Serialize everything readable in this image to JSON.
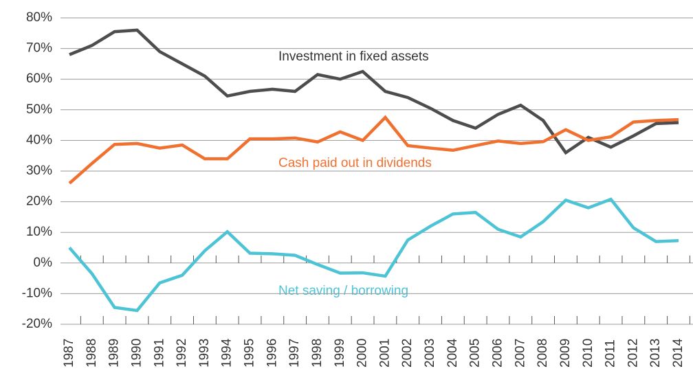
{
  "chart_data": {
    "type": "line",
    "categories": [
      "1987",
      "1988",
      "1989",
      "1990",
      "1991",
      "1992",
      "1993",
      "1994",
      "1995",
      "1996",
      "1997",
      "1998",
      "1999",
      "2000",
      "2001",
      "2002",
      "2003",
      "2004",
      "2005",
      "2006",
      "2007",
      "2008",
      "2009",
      "2010",
      "2011",
      "2012",
      "2013",
      "2014"
    ],
    "series": [
      {
        "name": "Investment in fixed assets",
        "color": "#4d4d4d",
        "values": [
          68,
          71,
          75.5,
          76,
          69,
          65,
          61,
          54.5,
          56,
          56.7,
          56,
          61.5,
          60,
          62.5,
          56,
          54,
          50.5,
          46.5,
          44,
          48.5,
          51.5,
          46.5,
          36,
          41,
          37.8,
          41.5,
          45.5,
          45.8
        ]
      },
      {
        "name": "Cash paid out in dividends",
        "color": "#f07030",
        "values": [
          26,
          32.5,
          38.7,
          39,
          37.5,
          38.5,
          34,
          34,
          40.5,
          40.5,
          40.8,
          39.5,
          42.8,
          40,
          47.5,
          38.3,
          37.5,
          36.8,
          38.3,
          39.8,
          39,
          39.6,
          43.5,
          40,
          41.2,
          46,
          46.5,
          46.8
        ]
      },
      {
        "name": "Net saving / borrowing",
        "color": "#4dc3d6",
        "values": [
          5,
          -3.5,
          -14.5,
          -15.5,
          -6.5,
          -4,
          4,
          10.2,
          3.2,
          3,
          2.5,
          -0.5,
          -3.3,
          -3.2,
          -4.3,
          7.5,
          12,
          16,
          16.5,
          11,
          8.5,
          13.5,
          20.5,
          18,
          20.8,
          11.5,
          7,
          7.3
        ]
      }
    ],
    "ylim": [
      -20,
      80
    ],
    "yticks": [
      {
        "value": -20,
        "label": "-20%"
      },
      {
        "value": -10,
        "label": "-10%"
      },
      {
        "value": 0,
        "label": "0%"
      },
      {
        "value": 10,
        "label": "10%"
      },
      {
        "value": 20,
        "label": "20%"
      },
      {
        "value": 30,
        "label": "30%"
      },
      {
        "value": 40,
        "label": "40%"
      },
      {
        "value": 50,
        "label": "50%"
      },
      {
        "value": 60,
        "label": "60%"
      },
      {
        "value": 70,
        "label": "70%"
      },
      {
        "value": 80,
        "label": "80%"
      }
    ],
    "grid": true
  }
}
